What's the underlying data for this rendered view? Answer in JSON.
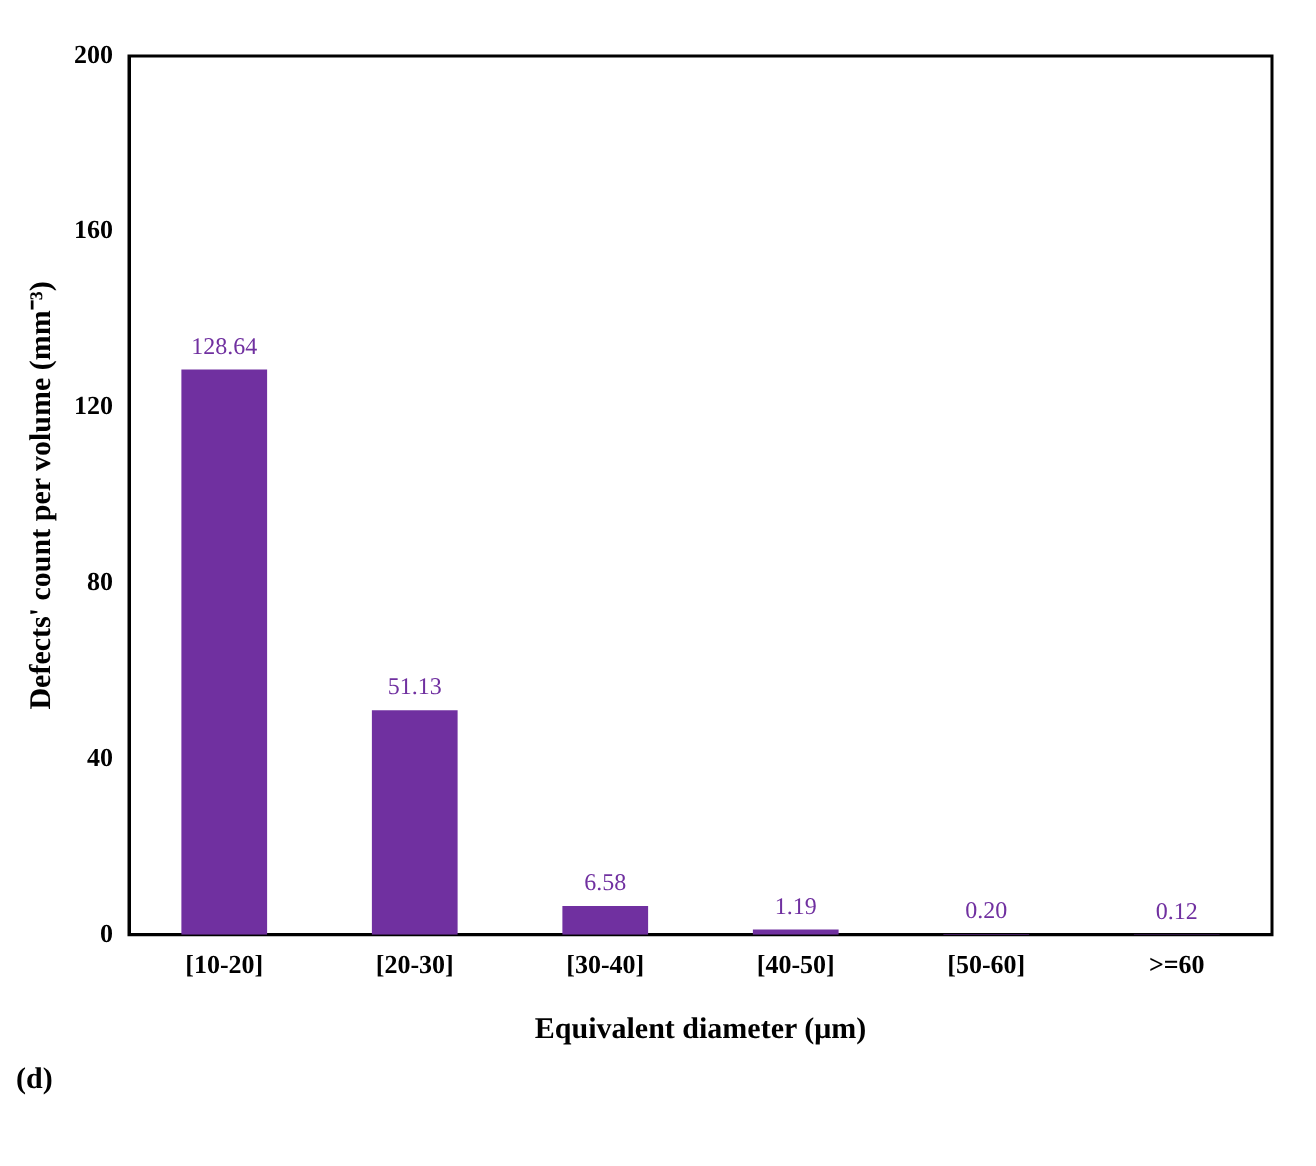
{
  "chart_data": {
    "type": "bar",
    "xlabel": "Equivalent diameter (μm)",
    "ylabel": "Defects' count per volume (mm⁻³)",
    "categories": [
      "[10-20]",
      "[20-30]",
      "[30-40]",
      "[40-50]",
      "[50-60]",
      ">=60"
    ],
    "values": [
      128.64,
      51.13,
      6.58,
      1.19,
      0.2,
      0.12
    ],
    "value_labels": [
      "128.64",
      "51.13",
      "6.58",
      "1.19",
      "0.20",
      "0.12"
    ],
    "color": "#7030a0",
    "ylim": [
      0,
      200
    ],
    "yticks": [
      0,
      40,
      80,
      120,
      160,
      200
    ],
    "grid": false,
    "annotations": [
      "(d)"
    ]
  }
}
